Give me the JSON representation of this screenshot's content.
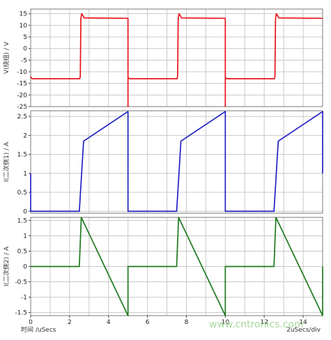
{
  "xaxis": {
    "label": "时间 /uSecs",
    "scale_note": "2uSecs/div",
    "range": [
      0,
      15
    ],
    "ticks": [
      "0",
      "2",
      "4",
      "6",
      "8",
      "10",
      "12",
      "14"
    ]
  },
  "watermark": "www.cntronics.com",
  "chart_data": [
    {
      "type": "line",
      "ylabel": "V(绕组) / V",
      "ylim": [
        -25,
        17
      ],
      "yticks": [
        "15",
        "10",
        "5",
        "0",
        "-5",
        "-10",
        "-15",
        "-20",
        "-25"
      ],
      "grid": true,
      "color": "#e8141b",
      "series": [
        {
          "x": [
            0,
            0.02,
            0.08,
            2.52,
            2.55,
            2.58,
            2.62,
            2.7,
            2.74,
            5.0,
            5.0,
            5.0,
            5.02,
            5.05,
            5.08,
            5.12,
            7.52,
            7.55,
            7.58,
            7.62,
            7.7,
            7.74,
            10.0,
            10.0,
            10.0,
            10.02,
            10.05,
            10.08,
            10.12,
            12.52,
            12.55,
            12.58,
            12.62,
            12.7,
            12.74,
            15.0
          ],
          "y": [
            -12,
            -12.4,
            -13,
            -13,
            -12,
            13,
            15,
            14,
            13.2,
            13,
            -25,
            -13,
            -12.5,
            -12.9,
            -13,
            -13,
            -13,
            -12,
            13,
            15,
            14,
            13.2,
            13,
            -25,
            -13,
            -12.5,
            -12.9,
            -13,
            -13,
            -13,
            -12,
            13,
            15,
            14,
            13.2,
            13
          ]
        }
      ]
    },
    {
      "type": "line",
      "ylabel": "I(二次侧1) / A",
      "ylim": [
        -0.05,
        2.65
      ],
      "yticks": [
        "2.5",
        "2",
        "1.5",
        "1",
        "0.5",
        "0"
      ],
      "grid": true,
      "color": "#2121c4",
      "series": [
        {
          "x": [
            0,
            0,
            0.05,
            2.5,
            2.72,
            2.72,
            5.0,
            5.0,
            7.5,
            7.72,
            7.72,
            10.0,
            10.0,
            12.5,
            12.72,
            12.72,
            15.0,
            15.0
          ],
          "y": [
            1.0,
            0,
            0,
            0,
            1.85,
            1.85,
            2.63,
            0,
            0,
            1.85,
            1.85,
            2.63,
            0,
            0,
            1.85,
            1.85,
            2.63,
            1.0
          ]
        }
      ]
    },
    {
      "type": "line",
      "ylabel": "I(二次侧2) / A",
      "ylim": [
        -1.6,
        1.6
      ],
      "yticks": [
        "1.5",
        "1",
        "0.5",
        "0",
        "-0.5",
        "-1",
        "-1.5"
      ],
      "grid": true,
      "color": "#1e7a1e",
      "series": [
        {
          "x": [
            0,
            2.5,
            2.6,
            5.0,
            5.0,
            7.5,
            7.6,
            10.0,
            10.0,
            12.5,
            12.6,
            15.0,
            15.0
          ],
          "y": [
            0,
            0,
            1.6,
            -1.6,
            0,
            0,
            1.6,
            -1.6,
            0,
            0,
            1.6,
            -1.6,
            0
          ]
        }
      ]
    }
  ]
}
